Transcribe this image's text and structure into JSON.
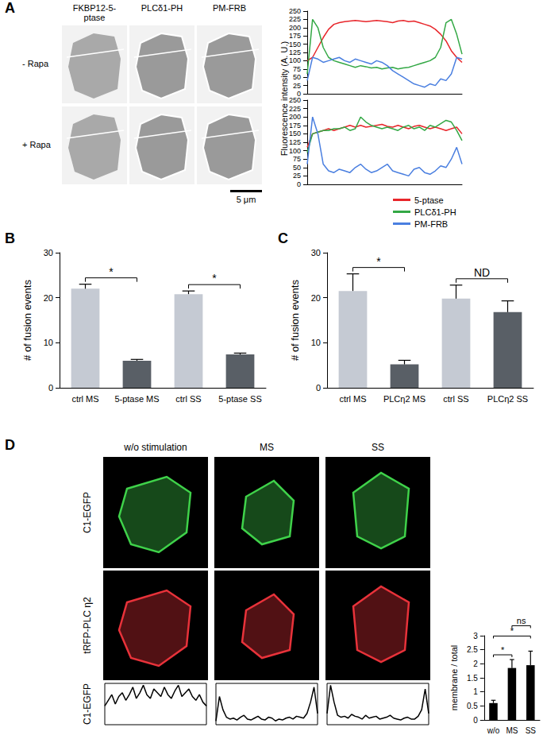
{
  "panel_labels": [
    "A",
    "B",
    "C",
    "D"
  ],
  "panel_a": {
    "columns": [
      "FKBP12-5-ptase",
      "PLCδ1-PH",
      "PM-FRB"
    ],
    "rows": [
      "- Rapa",
      "+ Rapa"
    ],
    "scale_bar": "5 μm"
  },
  "panel_d": {
    "columns": [
      "w/o stimulation",
      "MS",
      "SS"
    ],
    "rows": [
      "C1-EGFP",
      "tRFP-PLC η2",
      "C1-EGFP"
    ]
  },
  "chart_data": [
    {
      "type": "line",
      "ylabel": "Fluorescence intensity (A. U.)",
      "grid": false,
      "tick_labels": "y",
      "categories": [
        null,
        null,
        null,
        null,
        null,
        null,
        null,
        null,
        null,
        null,
        null,
        null,
        null,
        null,
        null,
        null,
        null,
        null,
        null,
        null,
        null,
        null,
        null,
        null,
        null,
        null,
        null,
        null,
        null,
        null
      ],
      "ylim": [
        0,
        250
      ],
      "yticks": [
        0,
        25,
        50,
        75,
        100,
        125,
        150,
        175,
        200,
        225,
        250
      ],
      "series": [
        {
          "name": "5-ptase",
          "color": "#e8262b",
          "values": [
            100,
            110,
            140,
            170,
            195,
            210,
            215,
            218,
            220,
            222,
            220,
            218,
            220,
            222,
            220,
            218,
            215,
            220,
            222,
            218,
            220,
            215,
            210,
            205,
            195,
            180,
            160,
            130,
            110,
            95
          ]
        },
        {
          "name": "PLCδ1-PH",
          "color": "#33a845",
          "values": [
            60,
            225,
            200,
            140,
            110,
            100,
            95,
            90,
            85,
            80,
            85,
            82,
            78,
            80,
            75,
            78,
            80,
            75,
            78,
            80,
            85,
            90,
            95,
            100,
            110,
            140,
            215,
            225,
            180,
            120
          ]
        },
        {
          "name": "PM-FRB",
          "color": "#4a7fe0",
          "values": [
            40,
            110,
            105,
            95,
            100,
            105,
            110,
            100,
            95,
            105,
            100,
            95,
            90,
            100,
            95,
            85,
            70,
            60,
            50,
            40,
            30,
            25,
            20,
            30,
            25,
            45,
            40,
            60,
            110,
            105
          ]
        }
      ]
    },
    {
      "type": "line",
      "grid": false,
      "tick_labels": "y",
      "legend": "lower right",
      "categories": [
        null,
        null,
        null,
        null,
        null,
        null,
        null,
        null,
        null,
        null,
        null,
        null,
        null,
        null,
        null,
        null,
        null,
        null,
        null,
        null,
        null,
        null,
        null,
        null,
        null,
        null,
        null,
        null,
        null,
        null
      ],
      "ylim": [
        0,
        250
      ],
      "yticks": [
        0,
        25,
        50,
        75,
        100,
        125,
        150,
        175,
        200,
        225,
        250
      ],
      "series": [
        {
          "name": "5-ptase",
          "color": "#e8262b",
          "values": [
            110,
            150,
            155,
            160,
            165,
            160,
            165,
            170,
            175,
            170,
            175,
            170,
            172,
            175,
            178,
            172,
            170,
            175,
            170,
            165,
            172,
            175,
            170,
            165,
            170,
            165,
            160,
            165,
            170,
            150
          ]
        },
        {
          "name": "PLCδ1-PH",
          "color": "#33a845",
          "values": [
            95,
            150,
            155,
            160,
            160,
            165,
            165,
            170,
            160,
            165,
            200,
            185,
            175,
            170,
            165,
            170,
            165,
            160,
            170,
            175,
            165,
            170,
            160,
            175,
            170,
            180,
            190,
            185,
            160,
            130
          ]
        },
        {
          "name": "PM-FRB",
          "color": "#4a7fe0",
          "values": [
            60,
            200,
            150,
            60,
            40,
            35,
            45,
            40,
            35,
            50,
            60,
            45,
            35,
            40,
            50,
            60,
            40,
            35,
            30,
            25,
            45,
            50,
            35,
            30,
            40,
            55,
            50,
            75,
            110,
            60
          ]
        }
      ]
    },
    {
      "type": "bar",
      "ylabel": "# of fusion events",
      "grid": false,
      "categories": [
        "ctrl MS",
        "5-ptase MS",
        "ctrl SS",
        "5-ptase SS"
      ],
      "values": [
        22,
        6,
        20.8,
        7.4
      ],
      "errors": [
        1.0,
        0.3,
        0.7,
        0.3
      ],
      "colors": [
        "#c5cad3",
        "#595f66",
        "#c5cad3",
        "#595f66"
      ],
      "ylim": [
        0,
        30
      ],
      "yticks": [
        0,
        10,
        20,
        30
      ],
      "annotations": [
        {
          "text": "*",
          "between": [
            "ctrl MS",
            "5-ptase MS"
          ]
        },
        {
          "text": "*",
          "between": [
            "ctrl SS",
            "5-ptase SS"
          ]
        }
      ]
    },
    {
      "type": "bar",
      "ylabel": "# of fusion events",
      "grid": false,
      "categories": [
        "ctrl MS",
        "PLCη2 MS",
        "ctrl SS",
        "PLCη2 SS"
      ],
      "values": [
        21.5,
        5.2,
        19.8,
        16.8
      ],
      "errors": [
        3.8,
        0.9,
        3.0,
        2.5
      ],
      "colors": [
        "#c5cad3",
        "#595f66",
        "#c5cad3",
        "#595f66"
      ],
      "ylim": [
        0,
        30
      ],
      "yticks": [
        0,
        10,
        20,
        30
      ],
      "annotations": [
        {
          "text": "*",
          "between": [
            "ctrl MS",
            "PLCη2 MS"
          ]
        },
        {
          "text": "ND",
          "between": [
            "ctrl SS",
            "PLCη2 SS"
          ]
        }
      ]
    },
    {
      "type": "bar",
      "ylabel": "membrane / total",
      "grid": false,
      "categories": [
        "w/o",
        "MS",
        "SS"
      ],
      "values": [
        0.6,
        1.85,
        1.95
      ],
      "errors": [
        0.1,
        0.3,
        0.5
      ],
      "color": "#000000",
      "ylim": [
        0,
        3
      ],
      "yticks": [
        0,
        0.5,
        1,
        1.5,
        2,
        2.5,
        3
      ],
      "annotations": [
        {
          "text": "*",
          "between": [
            "w/o",
            "MS"
          ]
        },
        {
          "text": "*",
          "between": [
            "w/o",
            "SS"
          ]
        },
        {
          "text": "ns",
          "between": [
            "MS",
            "SS"
          ]
        }
      ]
    },
    {
      "type": "line",
      "grid": false,
      "tick_labels": false,
      "color": "#000000",
      "categories": [
        null,
        null,
        null,
        null,
        null,
        null,
        null,
        null,
        null,
        null,
        null,
        null,
        null,
        null,
        null,
        null,
        null,
        null,
        null,
        null,
        null,
        null,
        null,
        null,
        null,
        null,
        null,
        null,
        null,
        null
      ],
      "ylim": [
        0,
        220
      ],
      "values": [
        100,
        130,
        160,
        110,
        150,
        170,
        130,
        160,
        200,
        140,
        170,
        210,
        160,
        140,
        190,
        170,
        150,
        200,
        160,
        140,
        180,
        210,
        150,
        170,
        190,
        150,
        130,
        160,
        120,
        100
      ]
    },
    {
      "type": "line",
      "grid": false,
      "tick_labels": false,
      "color": "#000000",
      "categories": [
        null,
        null,
        null,
        null,
        null,
        null,
        null,
        null,
        null,
        null,
        null,
        null,
        null,
        null,
        null,
        null,
        null,
        null,
        null,
        null,
        null,
        null,
        null,
        null,
        null,
        null,
        null,
        null,
        null,
        null
      ],
      "ylim": [
        0,
        220
      ],
      "values": [
        20,
        150,
        80,
        40,
        30,
        35,
        25,
        40,
        50,
        30,
        25,
        35,
        45,
        30,
        25,
        40,
        35,
        20,
        30,
        25,
        35,
        40,
        30,
        45,
        40,
        35,
        60,
        120,
        200,
        60
      ]
    },
    {
      "type": "line",
      "grid": false,
      "tick_labels": false,
      "color": "#000000",
      "categories": [
        null,
        null,
        null,
        null,
        null,
        null,
        null,
        null,
        null,
        null,
        null,
        null,
        null,
        null,
        null,
        null,
        null,
        null,
        null,
        null,
        null,
        null,
        null,
        null,
        null,
        null,
        null,
        null,
        null,
        null
      ],
      "ylim": [
        0,
        220
      ],
      "values": [
        60,
        210,
        120,
        50,
        40,
        45,
        35,
        55,
        45,
        40,
        30,
        50,
        35,
        40,
        45,
        30,
        35,
        40,
        50,
        35,
        30,
        25,
        35,
        40,
        30,
        30,
        45,
        80,
        190,
        60
      ]
    }
  ]
}
